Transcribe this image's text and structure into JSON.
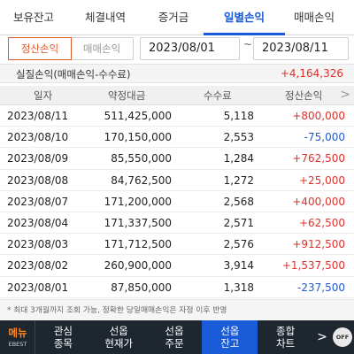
{
  "tabs": [
    {
      "label": "보유잔고",
      "active": false
    },
    {
      "label": "체결내역",
      "active": false
    },
    {
      "label": "증거금",
      "active": false
    },
    {
      "label": "일별손익",
      "active": true
    },
    {
      "label": "매매손익",
      "active": false
    }
  ],
  "filter": {
    "segment": [
      "정산손익",
      "매매손익"
    ],
    "start_date": "2023/08/01",
    "separator": "~",
    "end_date": "2023/08/11"
  },
  "realized": {
    "label": "실질손익(매매손익-수수료)",
    "value": "+4,164,326"
  },
  "table": {
    "headers": [
      "일자",
      "약정대금",
      "수수료",
      "정산손익"
    ],
    "more_arrow": ">",
    "rows": [
      {
        "date": "2023/08/11",
        "amount": "511,425,000",
        "fee": "5,118",
        "pl": "+800,000",
        "sign": "pos"
      },
      {
        "date": "2023/08/10",
        "amount": "170,150,000",
        "fee": "2,553",
        "pl": "-75,000",
        "sign": "neg"
      },
      {
        "date": "2023/08/09",
        "amount": "85,550,000",
        "fee": "1,284",
        "pl": "+762,500",
        "sign": "pos"
      },
      {
        "date": "2023/08/08",
        "amount": "84,762,500",
        "fee": "1,272",
        "pl": "+25,000",
        "sign": "pos"
      },
      {
        "date": "2023/08/07",
        "amount": "171,200,000",
        "fee": "2,568",
        "pl": "+400,000",
        "sign": "pos"
      },
      {
        "date": "2023/08/04",
        "amount": "171,337,500",
        "fee": "2,571",
        "pl": "+62,500",
        "sign": "pos"
      },
      {
        "date": "2023/08/03",
        "amount": "171,712,500",
        "fee": "2,576",
        "pl": "+912,500",
        "sign": "pos"
      },
      {
        "date": "2023/08/02",
        "amount": "260,900,000",
        "fee": "3,914",
        "pl": "+1,537,500",
        "sign": "pos"
      },
      {
        "date": "2023/08/01",
        "amount": "87,850,000",
        "fee": "1,318",
        "pl": "-237,500",
        "sign": "neg"
      }
    ]
  },
  "notice": "* 최대 3개월까지 조회 가능, 정확한 당일매매손익은 자정 이후 반영",
  "bottombar": {
    "menu_label": "메뉴",
    "menu_brand": "EBEST",
    "items": [
      {
        "label": "관심\n종목",
        "active": false
      },
      {
        "label": "선옵\n현재가",
        "active": false
      },
      {
        "label": "선옵\n주문",
        "active": false
      },
      {
        "label": "선옵\n잔고",
        "active": true
      },
      {
        "label": "종합\n차트",
        "active": false
      }
    ],
    "arrow": ">",
    "off_label": "OFF"
  },
  "colors": {
    "accent": "#1a5bd8",
    "positive": "#e0302a",
    "negative": "#1f5bd0",
    "segment_active": "#e05a2a"
  }
}
